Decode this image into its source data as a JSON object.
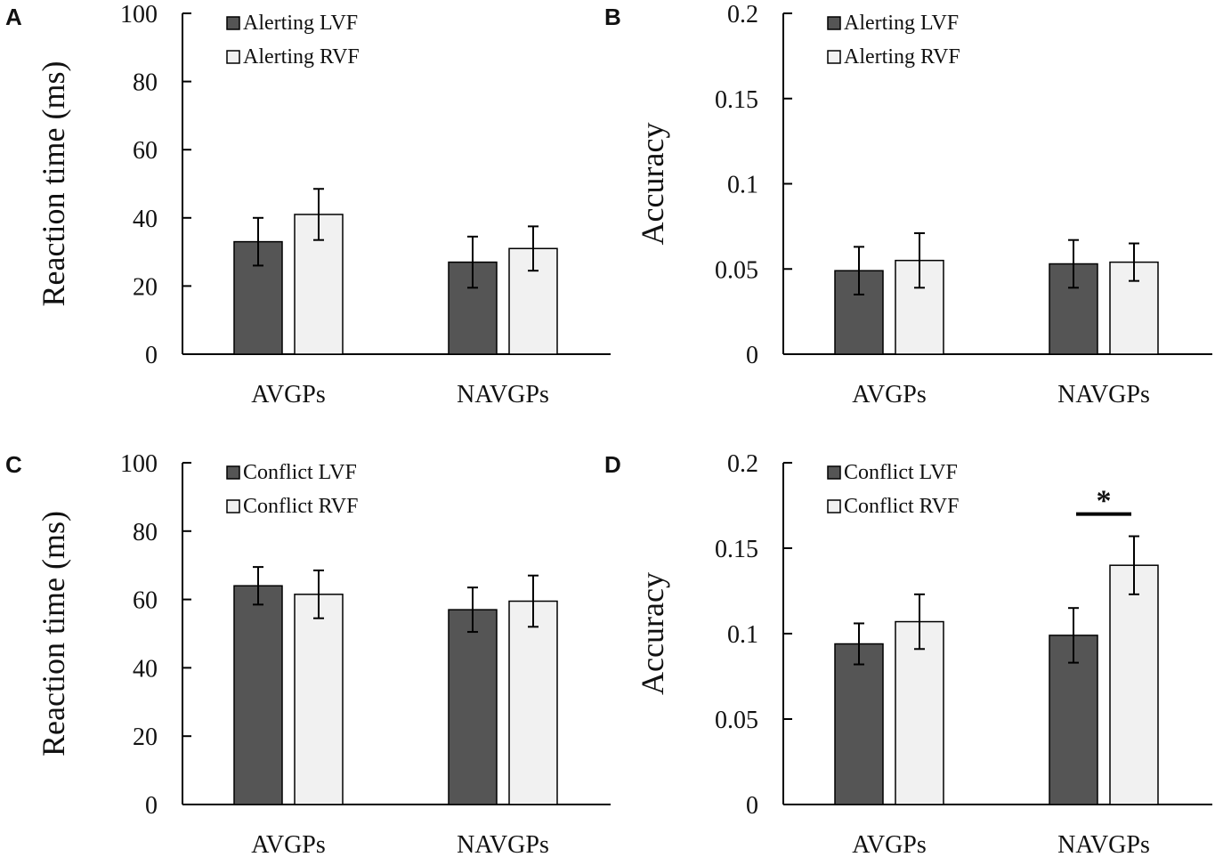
{
  "chart_data": [
    {
      "panel": "A",
      "type": "bar",
      "categories": [
        "AVGPs",
        "NAVGPs"
      ],
      "series": [
        {
          "name": "Alerting LVF",
          "values": [
            33,
            27
          ],
          "errors": [
            7,
            7.5
          ],
          "color": "#555555"
        },
        {
          "name": "Alerting RVF",
          "values": [
            41,
            31
          ],
          "errors": [
            7.5,
            6.5
          ],
          "color": "#f1f1f1"
        }
      ],
      "ylabel": "Reaction time (ms)",
      "ylim": [
        0,
        100
      ],
      "yticks": [
        "0",
        "20",
        "40",
        "60",
        "80",
        "100"
      ],
      "legend": "top-left"
    },
    {
      "panel": "B",
      "type": "bar",
      "categories": [
        "AVGPs",
        "NAVGPs"
      ],
      "series": [
        {
          "name": "Alerting LVF",
          "values": [
            0.049,
            0.053
          ],
          "errors": [
            0.014,
            0.014
          ],
          "color": "#555555"
        },
        {
          "name": "Alerting RVF",
          "values": [
            0.055,
            0.054
          ],
          "errors": [
            0.016,
            0.011
          ],
          "color": "#f1f1f1"
        }
      ],
      "ylabel": "Accuracy",
      "ylim": [
        0,
        0.2
      ],
      "yticks": [
        "0",
        "0.05",
        "0.1",
        "0.15",
        "0.2"
      ],
      "legend": "top-left"
    },
    {
      "panel": "C",
      "type": "bar",
      "categories": [
        "AVGPs",
        "NAVGPs"
      ],
      "series": [
        {
          "name": "Conflict LVF",
          "values": [
            64,
            57
          ],
          "errors": [
            5.5,
            6.5
          ],
          "color": "#555555"
        },
        {
          "name": "Conflict RVF",
          "values": [
            61.5,
            59.5
          ],
          "errors": [
            7,
            7.5
          ],
          "color": "#f1f1f1"
        }
      ],
      "ylabel": "Reaction time (ms)",
      "ylim": [
        0,
        100
      ],
      "yticks": [
        "0",
        "20",
        "40",
        "60",
        "80",
        "100"
      ],
      "legend": "top-left"
    },
    {
      "panel": "D",
      "type": "bar",
      "categories": [
        "AVGPs",
        "NAVGPs"
      ],
      "series": [
        {
          "name": "Conflict LVF",
          "values": [
            0.094,
            0.099
          ],
          "errors": [
            0.012,
            0.016
          ],
          "color": "#555555"
        },
        {
          "name": "Conflict RVF",
          "values": [
            0.107,
            0.14
          ],
          "errors": [
            0.016,
            0.017
          ],
          "color": "#f1f1f1"
        }
      ],
      "ylabel": "Accuracy",
      "ylim": [
        0,
        0.2
      ],
      "yticks": [
        "0",
        "0.05",
        "0.1",
        "0.15",
        "0.2"
      ],
      "legend": "top-left",
      "annotation": {
        "text": "*",
        "category_index": 1
      }
    }
  ]
}
